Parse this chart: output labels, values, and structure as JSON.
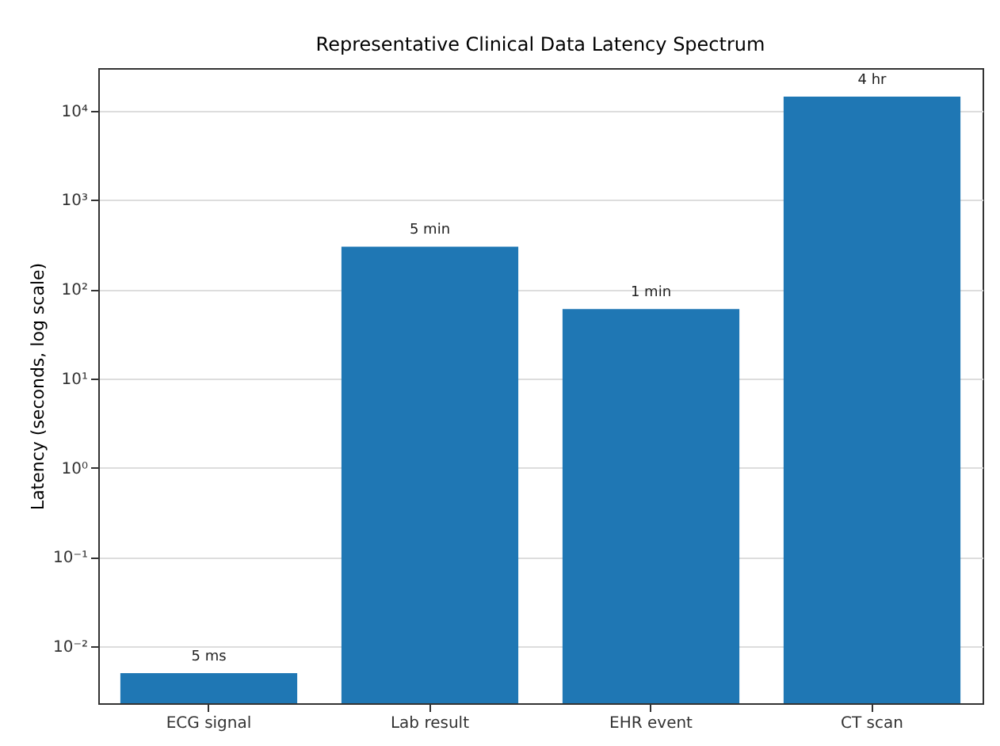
{
  "chart_data": {
    "type": "bar",
    "title": "Representative Clinical Data Latency Spectrum",
    "ylabel": "Latency (seconds, log scale)",
    "categories": [
      "ECG signal",
      "Lab result",
      "EHR event",
      "CT scan"
    ],
    "values": [
      0.005,
      300,
      60,
      14400
    ],
    "annotations": [
      {
        "text": "5 ms",
        "x": "ECG signal",
        "y": 0.005
      },
      {
        "text": "5 min",
        "x": "Lab result",
        "y": 300
      },
      {
        "text": "1 min",
        "x": "EHR event",
        "y": 60
      },
      {
        "text": "4 hr",
        "x": "CT scan",
        "y": 14400
      }
    ],
    "color": "#1f77b4",
    "log": "y",
    "grid": "y",
    "ylim": [
      0.0023,
      30000
    ],
    "yticks": [
      {
        "value": 0.01,
        "label": "10⁻²"
      },
      {
        "value": 0.1,
        "label": "10⁻¹"
      },
      {
        "value": 1,
        "label": "10⁰"
      },
      {
        "value": 10,
        "label": "10¹"
      },
      {
        "value": 100,
        "label": "10²"
      },
      {
        "value": 1000,
        "label": "10³"
      },
      {
        "value": 10000,
        "label": "10⁴"
      }
    ]
  }
}
